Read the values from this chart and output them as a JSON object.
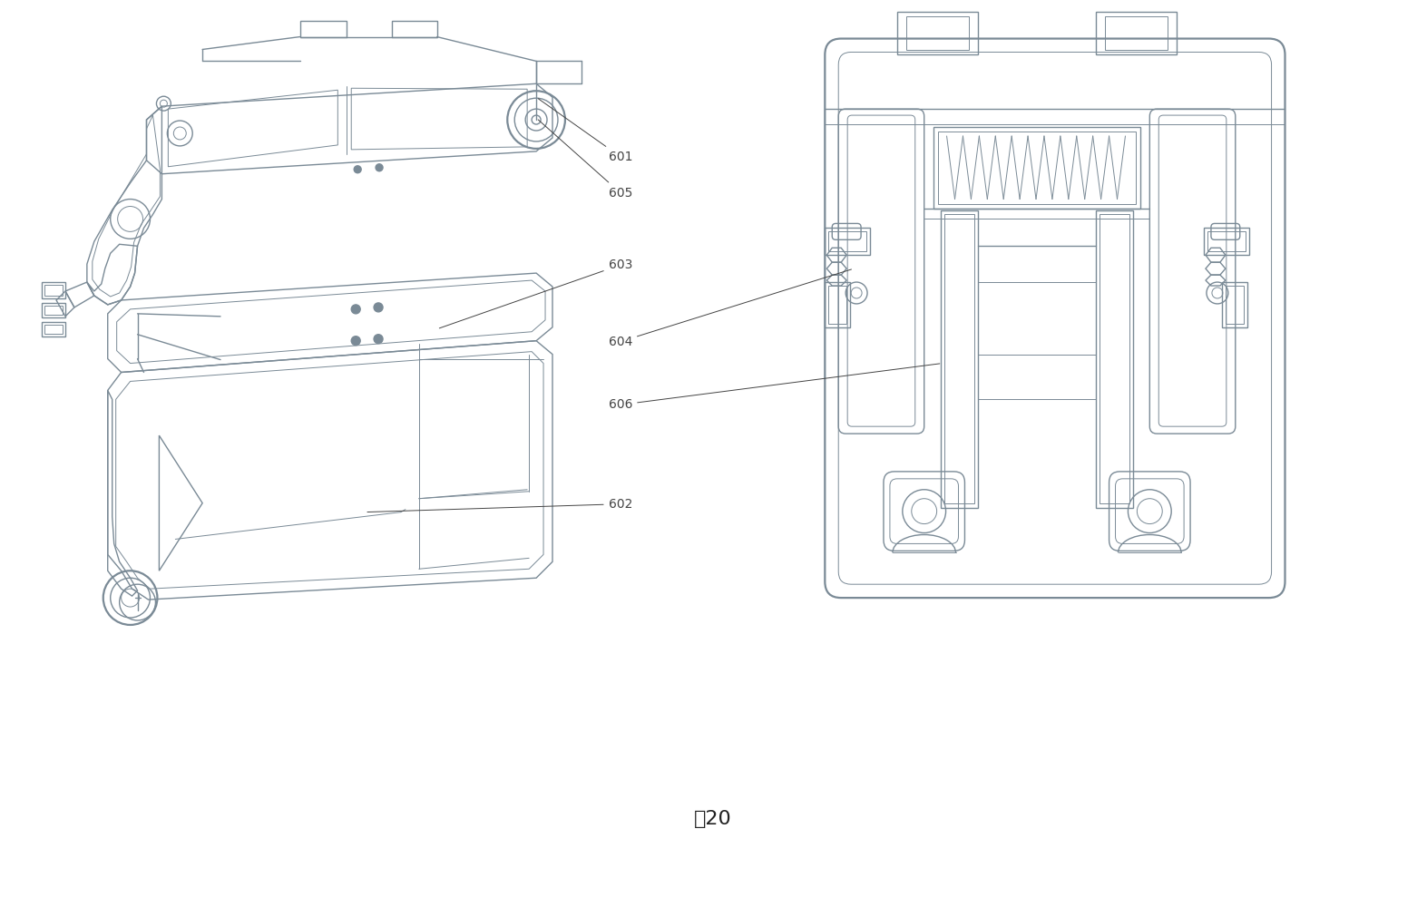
{
  "title": "图20",
  "title_fontsize": 16,
  "bg_color": "#ffffff",
  "lc": "#7a8a96",
  "lc2": "#909aa5",
  "lw": 1.0,
  "lwt": 1.6,
  "lw2": 0.7,
  "ann_color": "#444444",
  "ann_fs": 10,
  "labels": [
    "601",
    "605",
    "603",
    "604",
    "606",
    "602"
  ]
}
